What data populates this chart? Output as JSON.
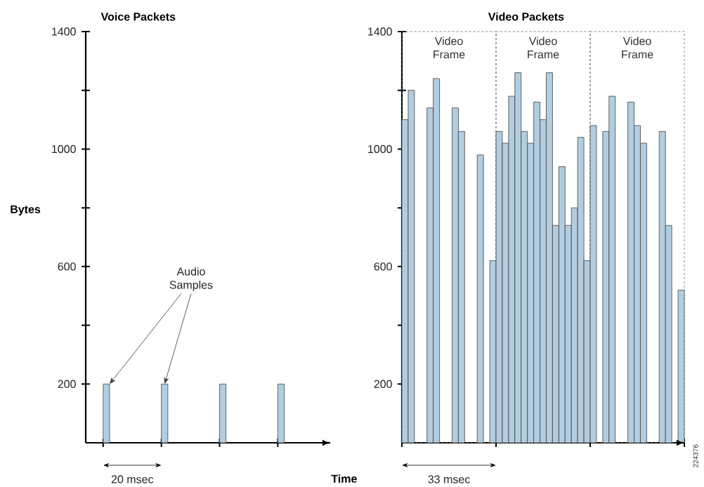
{
  "chart_data": [
    {
      "type": "bar",
      "title": "Voice Packets",
      "ylabel": "Bytes",
      "xlabel": "Time",
      "categories": [
        null,
        null,
        null,
        null
      ],
      "values": [
        200,
        200,
        200,
        200
      ],
      "color": "#b3cde0",
      "ylim": [
        0,
        1400
      ],
      "yticks": [
        200,
        {
          "value": 400,
          "label": null
        },
        600,
        {
          "value": 800,
          "label": null
        },
        1000,
        {
          "value": 1200,
          "label": null
        },
        1400
      ],
      "annotations": [
        "Audio Samples",
        "20 msec"
      ]
    },
    {
      "type": "bar",
      "title": "Video Packets",
      "categories": [
        null,
        null,
        null,
        null,
        null,
        null,
        null,
        null,
        null,
        null,
        null,
        null,
        null,
        null,
        null,
        null,
        null,
        null,
        null,
        null,
        null,
        null,
        null,
        null,
        null,
        null,
        null,
        null,
        null,
        null,
        null,
        null,
        null,
        null,
        null,
        null,
        null,
        null,
        null,
        null,
        null,
        null,
        null,
        null,
        null
      ],
      "values": [
        1100,
        1200,
        0,
        0,
        1140,
        1240,
        0,
        0,
        1140,
        1060,
        0,
        0,
        980,
        0,
        620,
        1060,
        1020,
        1180,
        1260,
        1060,
        1020,
        1160,
        1100,
        1260,
        740,
        940,
        740,
        800,
        1040,
        620,
        1080,
        0,
        1060,
        1180,
        0,
        0,
        1160,
        1080,
        1020,
        0,
        0,
        1060,
        740,
        0,
        520
      ],
      "color": "#b3cde0",
      "ylim": [
        0,
        1400
      ],
      "yticks": [
        200,
        {
          "value": 400,
          "label": null
        },
        600,
        {
          "value": 800,
          "label": null
        },
        1000,
        {
          "value": 1200,
          "label": null
        },
        1400
      ],
      "annotations": [
        "Video Frame",
        "Video Frame",
        "Video Frame",
        "33 msec",
        "224376"
      ]
    }
  ]
}
